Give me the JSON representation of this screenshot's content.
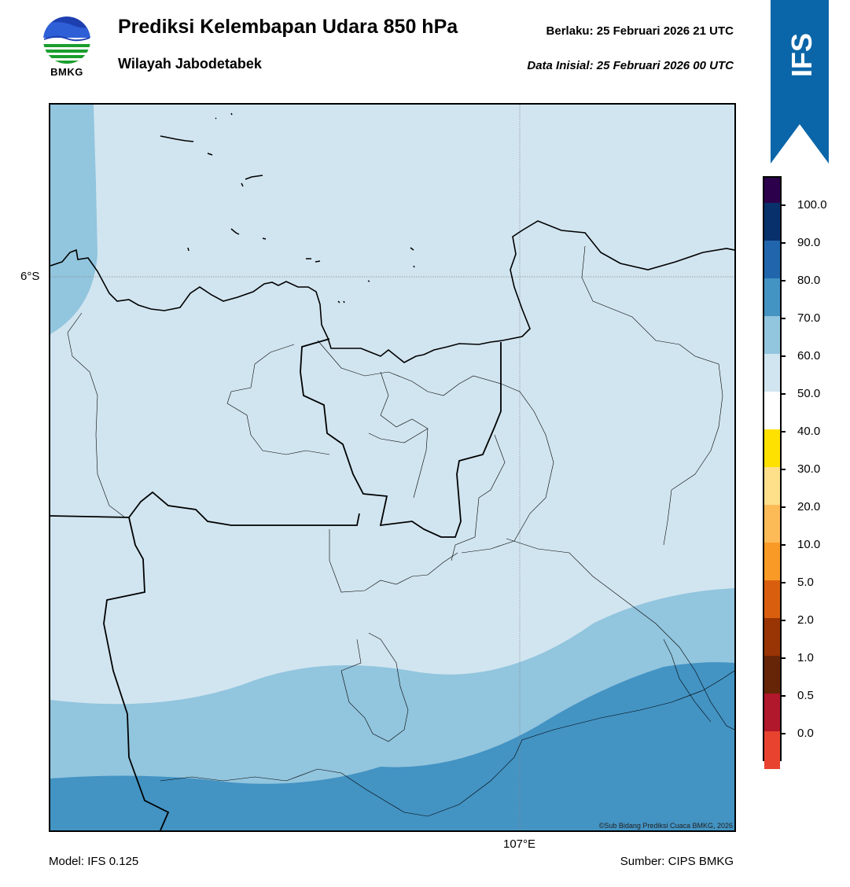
{
  "header": {
    "logo_text": "BMKG",
    "title": "Prediksi Kelembapan Udara 850 hPa",
    "region": "Wilayah Jabodetabek",
    "valid_label": "Berlaku:  25 Februari 2026 21 UTC",
    "init_label": "Data Inisial:  25 Februari 2026 00 UTC"
  },
  "model_badge": {
    "label": "IFS",
    "color": "#0a66a8"
  },
  "map": {
    "lat_label": "6°S",
    "lon_label": "107°E",
    "credit": "©Sub Bidang Prediksi Cuaca BMKG, 2026",
    "fill_colors": {
      "50-60": "#d1e5f0",
      "60-70": "#92c5de",
      "70-80": "#4393c3"
    }
  },
  "footer": {
    "model": "Model: IFS 0.125",
    "source": "Sumber: CIPS BMKG"
  },
  "colorbar": {
    "labels": [
      "100.0",
      "90.0",
      "80.0",
      "70.0",
      "60.0",
      "50.0",
      "40.0",
      "30.0",
      "20.0",
      "10.0",
      "5.0",
      "2.0",
      "1.0",
      "0.5",
      "0.0"
    ],
    "colors_top_to_bottom": [
      "#2d004b",
      "#08306b",
      "#2166ac",
      "#4393c3",
      "#92c5de",
      "#d1e5f0",
      "#ffffff",
      "#ffe100",
      "#ffe08a",
      "#fdbb58",
      "#f99a26",
      "#d95f0e",
      "#993404",
      "#662506",
      "#b2182b",
      "#e8432f"
    ]
  }
}
